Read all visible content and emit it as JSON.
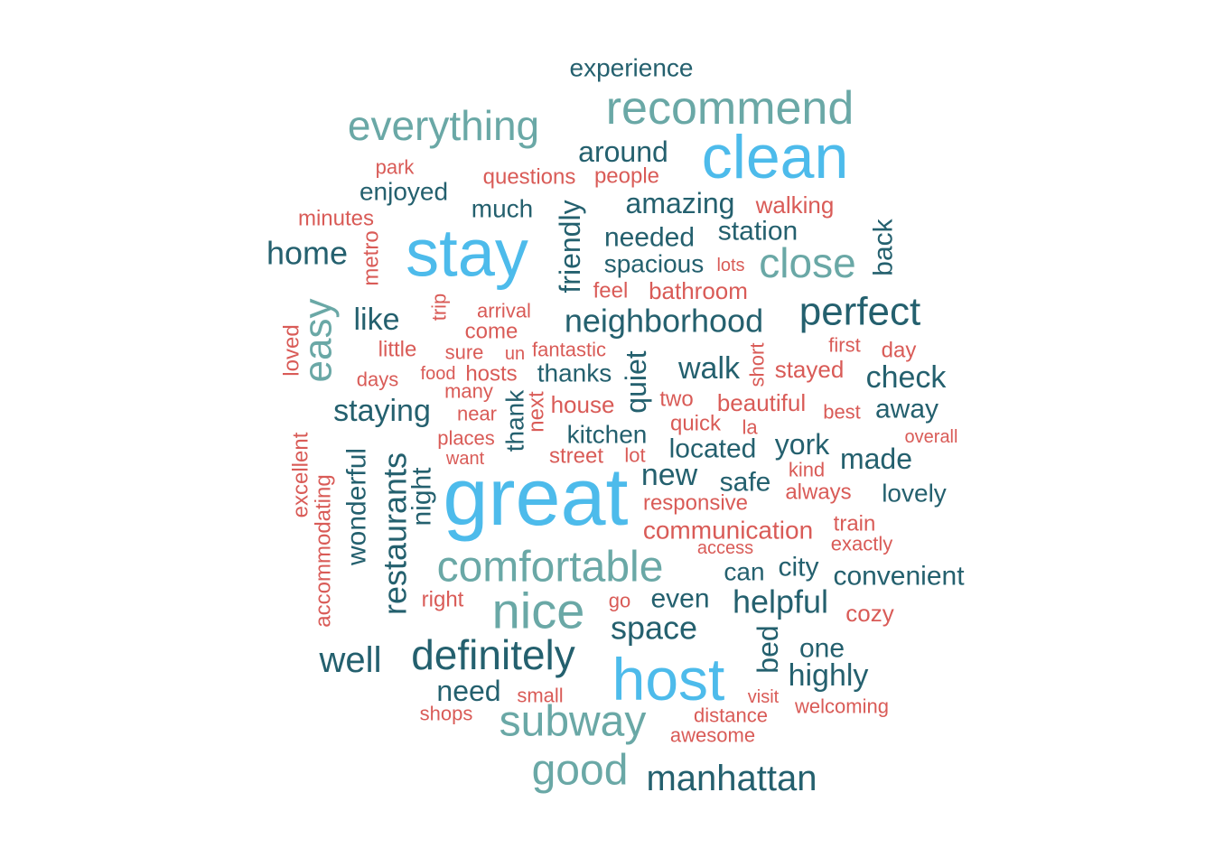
{
  "colors": {
    "tier1": "#4dbbeb",
    "tier2": "#6aa8a6",
    "tier3": "#24606e",
    "tier4": "#d95b57"
  },
  "words": [
    {
      "text": "great",
      "tier": "tier1",
      "rotated": false
    },
    {
      "text": "host",
      "tier": "tier1",
      "rotated": false
    },
    {
      "text": "stay",
      "tier": "tier1",
      "rotated": false
    },
    {
      "text": "clean",
      "tier": "tier1",
      "rotated": false
    },
    {
      "text": "recommend",
      "tier": "tier2",
      "rotated": false
    },
    {
      "text": "everything",
      "tier": "tier2",
      "rotated": false
    },
    {
      "text": "close",
      "tier": "tier2",
      "rotated": false
    },
    {
      "text": "easy",
      "tier": "tier2",
      "rotated": true
    },
    {
      "text": "comfortable",
      "tier": "tier2",
      "rotated": false
    },
    {
      "text": "nice",
      "tier": "tier2",
      "rotated": false
    },
    {
      "text": "subway",
      "tier": "tier2",
      "rotated": false
    },
    {
      "text": "good",
      "tier": "tier2",
      "rotated": false
    },
    {
      "text": "experience",
      "tier": "tier3",
      "rotated": false
    },
    {
      "text": "around",
      "tier": "tier3",
      "rotated": false
    },
    {
      "text": "enjoyed",
      "tier": "tier3",
      "rotated": false
    },
    {
      "text": "much",
      "tier": "tier3",
      "rotated": false
    },
    {
      "text": "amazing",
      "tier": "tier3",
      "rotated": false
    },
    {
      "text": "home",
      "tier": "tier3",
      "rotated": false
    },
    {
      "text": "needed",
      "tier": "tier3",
      "rotated": false
    },
    {
      "text": "station",
      "tier": "tier3",
      "rotated": false
    },
    {
      "text": "spacious",
      "tier": "tier3",
      "rotated": false
    },
    {
      "text": "friendly",
      "tier": "tier3",
      "rotated": true
    },
    {
      "text": "back",
      "tier": "tier3",
      "rotated": true
    },
    {
      "text": "perfect",
      "tier": "tier3",
      "rotated": false
    },
    {
      "text": "neighborhood",
      "tier": "tier3",
      "rotated": false
    },
    {
      "text": "like",
      "tier": "tier3",
      "rotated": false
    },
    {
      "text": "walk",
      "tier": "tier3",
      "rotated": false
    },
    {
      "text": "check",
      "tier": "tier3",
      "rotated": false
    },
    {
      "text": "thanks",
      "tier": "tier3",
      "rotated": false
    },
    {
      "text": "quiet",
      "tier": "tier3",
      "rotated": true
    },
    {
      "text": "staying",
      "tier": "tier3",
      "rotated": false
    },
    {
      "text": "away",
      "tier": "tier3",
      "rotated": false
    },
    {
      "text": "kitchen",
      "tier": "tier3",
      "rotated": false
    },
    {
      "text": "located",
      "tier": "tier3",
      "rotated": false
    },
    {
      "text": "york",
      "tier": "tier3",
      "rotated": false
    },
    {
      "text": "made",
      "tier": "tier3",
      "rotated": false
    },
    {
      "text": "thank",
      "tier": "tier3",
      "rotated": true
    },
    {
      "text": "restaurants",
      "tier": "tier3",
      "rotated": true
    },
    {
      "text": "wonderful",
      "tier": "tier3",
      "rotated": true
    },
    {
      "text": "night",
      "tier": "tier3",
      "rotated": true
    },
    {
      "text": "new",
      "tier": "tier3",
      "rotated": false
    },
    {
      "text": "safe",
      "tier": "tier3",
      "rotated": false
    },
    {
      "text": "lovely",
      "tier": "tier3",
      "rotated": false
    },
    {
      "text": "can",
      "tier": "tier3",
      "rotated": false
    },
    {
      "text": "city",
      "tier": "tier3",
      "rotated": false
    },
    {
      "text": "convenient",
      "tier": "tier3",
      "rotated": false
    },
    {
      "text": "even",
      "tier": "tier3",
      "rotated": false
    },
    {
      "text": "helpful",
      "tier": "tier3",
      "rotated": false
    },
    {
      "text": "space",
      "tier": "tier3",
      "rotated": false
    },
    {
      "text": "well",
      "tier": "tier3",
      "rotated": false
    },
    {
      "text": "definitely",
      "tier": "tier3",
      "rotated": false
    },
    {
      "text": "bed",
      "tier": "tier3",
      "rotated": true
    },
    {
      "text": "one",
      "tier": "tier3",
      "rotated": false
    },
    {
      "text": "highly",
      "tier": "tier3",
      "rotated": false
    },
    {
      "text": "need",
      "tier": "tier3",
      "rotated": false
    },
    {
      "text": "manhattan",
      "tier": "tier3",
      "rotated": false
    },
    {
      "text": "park",
      "tier": "tier4",
      "rotated": false
    },
    {
      "text": "questions",
      "tier": "tier4",
      "rotated": false
    },
    {
      "text": "people",
      "tier": "tier4",
      "rotated": false
    },
    {
      "text": "walking",
      "tier": "tier4",
      "rotated": false
    },
    {
      "text": "minutes",
      "tier": "tier4",
      "rotated": false
    },
    {
      "text": "metro",
      "tier": "tier4",
      "rotated": true
    },
    {
      "text": "lots",
      "tier": "tier4",
      "rotated": false
    },
    {
      "text": "feel",
      "tier": "tier4",
      "rotated": false
    },
    {
      "text": "bathroom",
      "tier": "tier4",
      "rotated": false
    },
    {
      "text": "trip",
      "tier": "tier4",
      "rotated": true
    },
    {
      "text": "arrival",
      "tier": "tier4",
      "rotated": false
    },
    {
      "text": "come",
      "tier": "tier4",
      "rotated": false
    },
    {
      "text": "loved",
      "tier": "tier4",
      "rotated": true
    },
    {
      "text": "little",
      "tier": "tier4",
      "rotated": false
    },
    {
      "text": "sure",
      "tier": "tier4",
      "rotated": false
    },
    {
      "text": "un",
      "tier": "tier4",
      "rotated": false
    },
    {
      "text": "fantastic",
      "tier": "tier4",
      "rotated": false
    },
    {
      "text": "first",
      "tier": "tier4",
      "rotated": false
    },
    {
      "text": "day",
      "tier": "tier4",
      "rotated": false
    },
    {
      "text": "days",
      "tier": "tier4",
      "rotated": false
    },
    {
      "text": "food",
      "tier": "tier4",
      "rotated": false
    },
    {
      "text": "hosts",
      "tier": "tier4",
      "rotated": false
    },
    {
      "text": "short",
      "tier": "tier4",
      "rotated": true
    },
    {
      "text": "stayed",
      "tier": "tier4",
      "rotated": false
    },
    {
      "text": "many",
      "tier": "tier4",
      "rotated": false
    },
    {
      "text": "house",
      "tier": "tier4",
      "rotated": false
    },
    {
      "text": "next",
      "tier": "tier4",
      "rotated": true
    },
    {
      "text": "two",
      "tier": "tier4",
      "rotated": false
    },
    {
      "text": "beautiful",
      "tier": "tier4",
      "rotated": false
    },
    {
      "text": "near",
      "tier": "tier4",
      "rotated": false
    },
    {
      "text": "best",
      "tier": "tier4",
      "rotated": false
    },
    {
      "text": "quick",
      "tier": "tier4",
      "rotated": false
    },
    {
      "text": "la",
      "tier": "tier4",
      "rotated": false
    },
    {
      "text": "excellent",
      "tier": "tier4",
      "rotated": true
    },
    {
      "text": "places",
      "tier": "tier4",
      "rotated": false
    },
    {
      "text": "overall",
      "tier": "tier4",
      "rotated": false
    },
    {
      "text": "street",
      "tier": "tier4",
      "rotated": false
    },
    {
      "text": "lot",
      "tier": "tier4",
      "rotated": false
    },
    {
      "text": "want",
      "tier": "tier4",
      "rotated": false
    },
    {
      "text": "kind",
      "tier": "tier4",
      "rotated": false
    },
    {
      "text": "accommodating",
      "tier": "tier4",
      "rotated": true
    },
    {
      "text": "always",
      "tier": "tier4",
      "rotated": false
    },
    {
      "text": "responsive",
      "tier": "tier4",
      "rotated": false
    },
    {
      "text": "communication",
      "tier": "tier4",
      "rotated": false
    },
    {
      "text": "train",
      "tier": "tier4",
      "rotated": false
    },
    {
      "text": "access",
      "tier": "tier4",
      "rotated": false
    },
    {
      "text": "exactly",
      "tier": "tier4",
      "rotated": false
    },
    {
      "text": "right",
      "tier": "tier4",
      "rotated": false
    },
    {
      "text": "go",
      "tier": "tier4",
      "rotated": false
    },
    {
      "text": "cozy",
      "tier": "tier4",
      "rotated": false
    },
    {
      "text": "small",
      "tier": "tier4",
      "rotated": false
    },
    {
      "text": "visit",
      "tier": "tier4",
      "rotated": false
    },
    {
      "text": "welcoming",
      "tier": "tier4",
      "rotated": false
    },
    {
      "text": "shops",
      "tier": "tier4",
      "rotated": false
    },
    {
      "text": "distance",
      "tier": "tier4",
      "rotated": false
    },
    {
      "text": "awesome",
      "tier": "tier4",
      "rotated": false
    }
  ]
}
